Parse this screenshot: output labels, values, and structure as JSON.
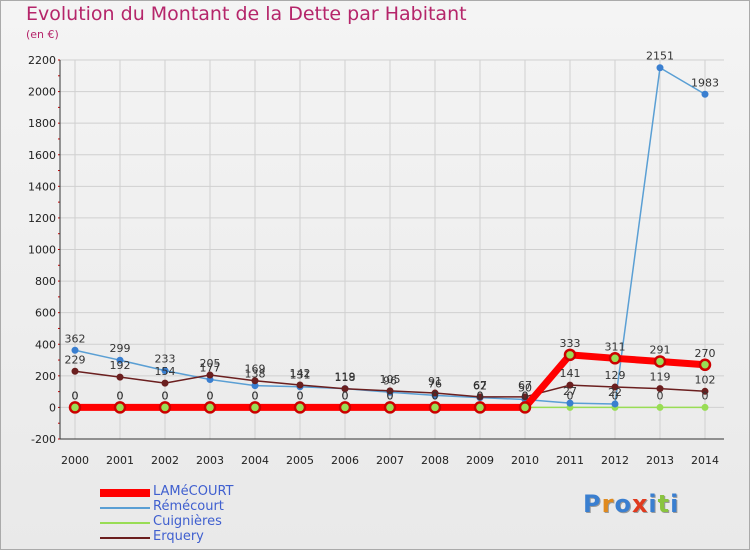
{
  "header": {
    "title": "Evolution du Montant de la Dette par Habitant",
    "subtitle": "(en €)"
  },
  "logo": {
    "text": "Proxiti",
    "colors": [
      "#3a7fd0",
      "#e08a1e",
      "#3a7fd0",
      "#e03a1e",
      "#3a7fd0",
      "#8ac43f",
      "#3a7fd0"
    ]
  },
  "chart_data": {
    "type": "line",
    "title": "Evolution du Montant de la Dette par Habitant",
    "ylabel": "(en €)",
    "xlabel": "",
    "x": [
      2000,
      2001,
      2002,
      2003,
      2004,
      2005,
      2006,
      2007,
      2008,
      2009,
      2010,
      2011,
      2012,
      2013,
      2014
    ],
    "ylim": [
      -200,
      2200
    ],
    "yticks": [
      -200,
      0,
      200,
      400,
      600,
      800,
      1000,
      1200,
      1400,
      1600,
      1800,
      2000,
      2200
    ],
    "grid": true,
    "legend_position": "bottom-left",
    "series": [
      {
        "name": "LAMéCOURT",
        "color": "#ff0000",
        "values": [
          0,
          0,
          0,
          0,
          0,
          0,
          0,
          0,
          0,
          0,
          0,
          333,
          311,
          291,
          270
        ],
        "labels": [
          "0",
          "0",
          "0",
          "0",
          "0",
          "0",
          "0",
          "0",
          "0",
          "0",
          "0",
          "333",
          "311",
          "291",
          "270"
        ]
      },
      {
        "name": "Rémécourt",
        "color": "#5a9fd4",
        "values": [
          362,
          299,
          233,
          177,
          138,
          131,
          119,
          96,
          76,
          62,
          50,
          27,
          22,
          2151,
          1983
        ],
        "labels": [
          "362",
          "299",
          "233",
          "177",
          "138",
          "131",
          "119",
          "96",
          "76",
          "62",
          "50",
          "27",
          "22",
          "2151",
          "1983"
        ]
      },
      {
        "name": "Cuignières",
        "color": "#99dd55",
        "values": [
          0,
          0,
          0,
          0,
          0,
          0,
          0,
          0,
          0,
          0,
          0,
          0,
          0,
          0,
          0
        ],
        "labels": [
          "0",
          "0",
          "0",
          "0",
          "0",
          "0",
          "0",
          "0",
          "0",
          "0",
          "0",
          "0",
          "0",
          "0",
          "0"
        ]
      },
      {
        "name": "Erquery",
        "color": "#6b1f1f",
        "values": [
          229,
          192,
          154,
          205,
          169,
          142,
          118,
          105,
          91,
          67,
          67,
          141,
          129,
          119,
          102
        ],
        "labels": [
          "229",
          "192",
          "154",
          "205",
          "169",
          "142",
          "118",
          "105",
          "91",
          "67",
          "67",
          "141",
          "129",
          "119",
          "102"
        ]
      }
    ]
  }
}
